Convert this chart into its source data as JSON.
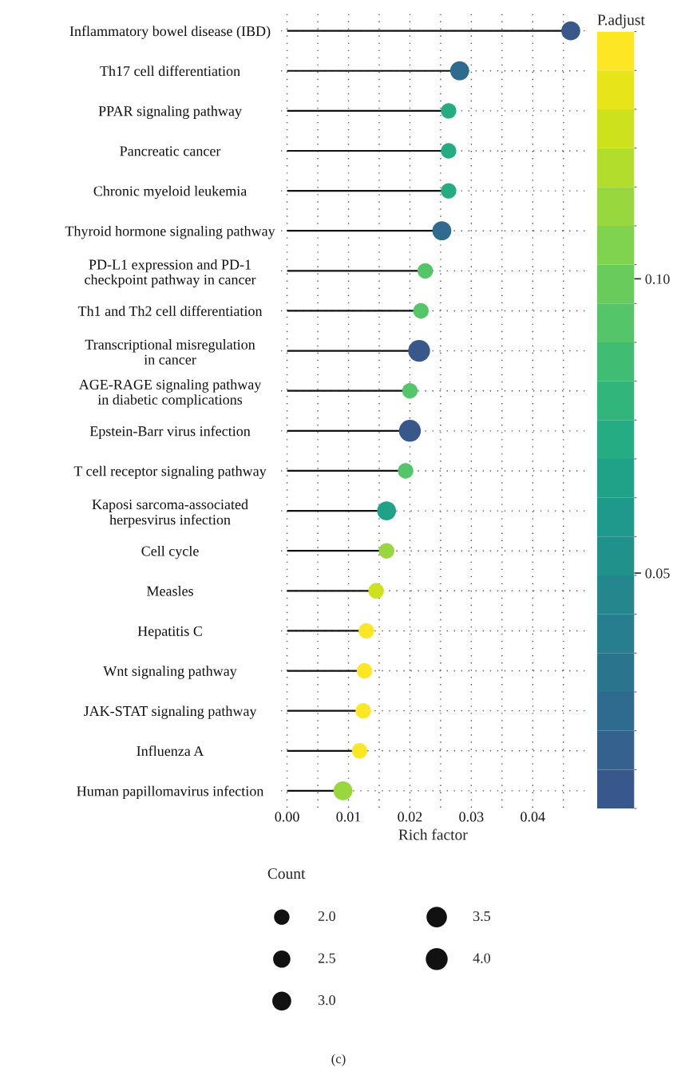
{
  "chart_data": {
    "type": "lollipop",
    "orientation": "horizontal",
    "categories": [
      "Inflammatory bowel disease (IBD)",
      "Th17 cell differentiation",
      "PPAR signaling pathway",
      "Pancreatic cancer",
      "Chronic myeloid leukemia",
      "Thyroid hormone signaling pathway",
      "PD-L1 expression and PD-1\ncheckpoint pathway in cancer",
      "Th1 and Th2 cell differentiation",
      "Transcriptional misregulation\nin cancer",
      "AGE-RAGE signaling pathway\nin diabetic complications",
      "Epstein-Barr virus infection",
      "T cell receptor signaling pathway",
      "Kaposi sarcoma-associated\nherpesvirus infection",
      "Cell cycle",
      "Measles",
      "Hepatitis C",
      "Wnt signaling pathway",
      "JAK-STAT signaling pathway",
      "Influenza A",
      "Human papillomavirus infection"
    ],
    "values": [
      0.0462,
      0.0281,
      0.0263,
      0.0263,
      0.0263,
      0.0252,
      0.0225,
      0.0218,
      0.0215,
      0.02,
      0.02,
      0.0193,
      0.0162,
      0.0162,
      0.0145,
      0.0129,
      0.0126,
      0.0124,
      0.0118,
      0.0091
    ],
    "cvalues": [
      0.015,
      0.025,
      0.075,
      0.075,
      0.075,
      0.025,
      0.09,
      0.092,
      0.015,
      0.092,
      0.015,
      0.092,
      0.065,
      0.115,
      0.128,
      0.138,
      0.138,
      0.138,
      0.138,
      0.115
    ],
    "sizes": [
      3,
      3,
      2,
      2,
      2,
      3,
      2,
      2,
      4,
      2,
      4,
      2,
      3,
      2,
      2,
      2,
      2,
      2,
      2,
      3
    ],
    "size_legend": [
      {
        "value": 2,
        "label": "2.0"
      },
      2.5,
      {
        "value": 3,
        "label": "3.0"
      },
      3.5,
      {
        "value": 4,
        "label": "4.0"
      }
    ],
    "legend_title": "Count",
    "xlabel": "Rich factor",
    "clabel": "P.adjust",
    "clim": [
      0.01,
      0.142
    ],
    "cticks": [
      {
        "value": 0.05,
        "label": "0.05"
      },
      {
        "value": 0.1,
        "label": "0.10"
      }
    ],
    "xlim": [
      -0.001,
      0.0485
    ],
    "xticks": [
      {
        "value": 0,
        "label": "0.00"
      },
      {
        "value": 0.01,
        "label": "0.01"
      },
      {
        "value": 0.02,
        "label": "0.02"
      },
      {
        "value": 0.03,
        "label": "0.03"
      },
      {
        "value": 0.04,
        "label": "0.04"
      }
    ],
    "grid": true,
    "annotations": [
      "(c)"
    ]
  }
}
